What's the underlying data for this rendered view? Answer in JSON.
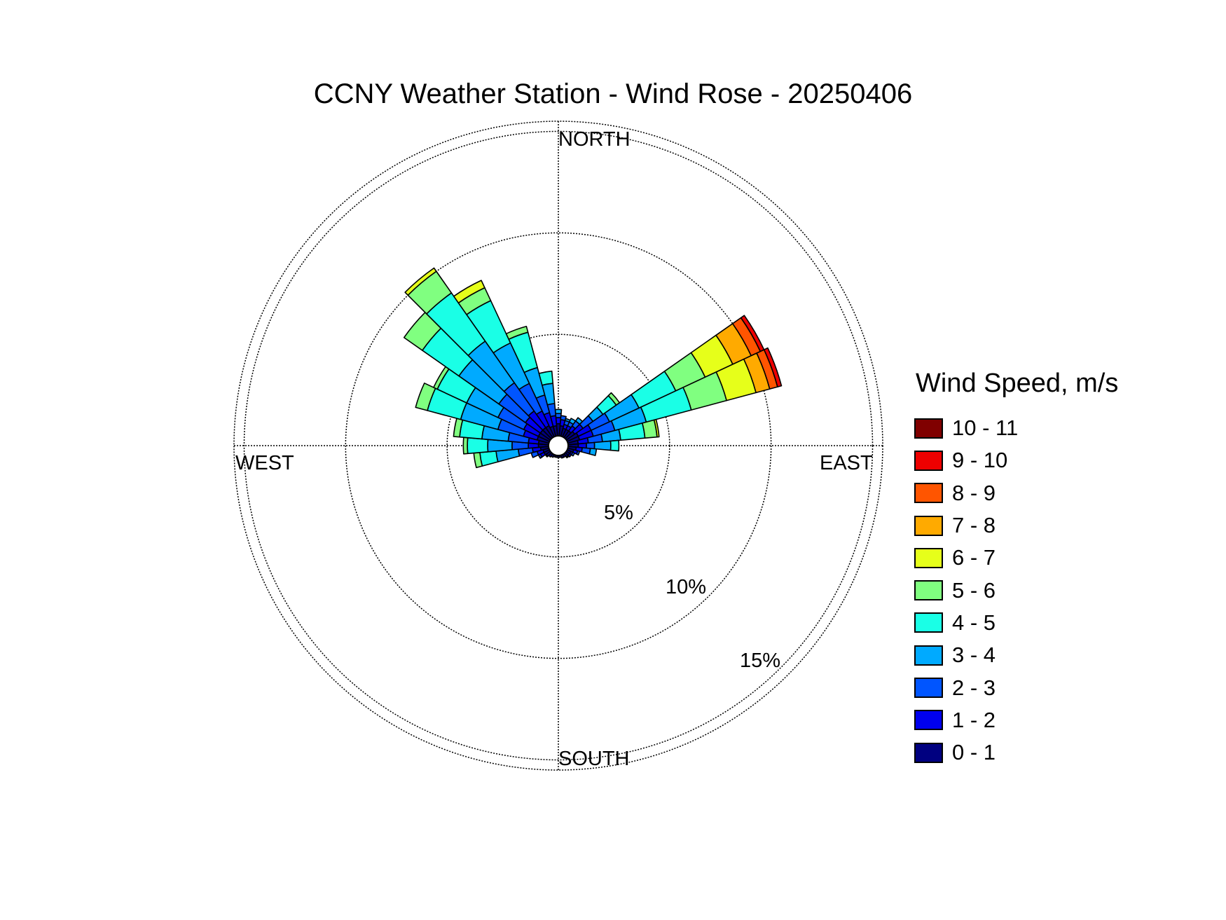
{
  "chart_data": {
    "type": "wind-rose",
    "title": "CCNY Weather Station - Wind Rose - 20250406",
    "direction_labels": {
      "north": "NORTH",
      "east": "EAST",
      "south": "SOUTH",
      "west": "WEST"
    },
    "radial_ticks": [
      5,
      10,
      15
    ],
    "radial_tick_labels": [
      "5%",
      "10%",
      "15%"
    ],
    "rmax": 15.5,
    "grid": true,
    "legend": {
      "title": "Wind Speed, m/s",
      "placement": "right",
      "bins": [
        "10 - 11",
        "9 - 10",
        "8 - 9",
        "7 - 8",
        "6 - 7",
        "5 - 6",
        "4 - 5",
        "3 - 4",
        "2 - 3",
        "1 - 2",
        "0 - 1"
      ],
      "colors": [
        "#800000",
        "#ee0000",
        "#ff5500",
        "#ffaa00",
        "#e6ff1a",
        "#80ff80",
        "#1affe6",
        "#00aaff",
        "#0055ff",
        "#0000ee",
        "#000080"
      ]
    },
    "speed_bins": [
      "0 - 1",
      "1 - 2",
      "2 - 3",
      "3 - 4",
      "4 - 5",
      "5 - 6",
      "6 - 7",
      "7 - 8",
      "8 - 9",
      "9 - 10",
      "10 - 11"
    ],
    "bin_colors": [
      "#000080",
      "#0000ee",
      "#0055ff",
      "#00aaff",
      "#1affe6",
      "#80ff80",
      "#e6ff1a",
      "#ffaa00",
      "#ff5500",
      "#ee0000",
      "#800000"
    ],
    "sector_width_deg": 10,
    "sectors": [
      {
        "direction": 0,
        "cumulative": [
          0.6,
          0.9,
          1.1,
          1.3
        ]
      },
      {
        "direction": 10,
        "cumulative": [
          0.5,
          0.8,
          1.0
        ]
      },
      {
        "direction": 20,
        "cumulative": [
          0.4,
          0.6,
          0.8,
          0.9
        ]
      },
      {
        "direction": 30,
        "cumulative": [
          0.4,
          0.6,
          0.8,
          1.0
        ]
      },
      {
        "direction": 40,
        "cumulative": [
          0.4,
          0.7,
          1.0,
          1.2
        ]
      },
      {
        "direction": 50,
        "cumulative": [
          0.5,
          1.0,
          1.6,
          2.2,
          3.0,
          3.2
        ]
      },
      {
        "direction": 60,
        "cumulative": [
          0.6,
          1.3,
          2.3,
          3.9,
          5.9,
          7.5,
          9.0,
          10.0,
          10.5,
          10.7
        ]
      },
      {
        "direction": 70,
        "cumulative": [
          0.6,
          1.3,
          2.4,
          4.0,
          6.3,
          8.1,
          9.6,
          10.3,
          10.7,
          10.9
        ]
      },
      {
        "direction": 80,
        "cumulative": [
          0.5,
          1.0,
          1.7,
          2.6,
          3.8,
          4.4,
          4.5
        ]
      },
      {
        "direction": 90,
        "cumulative": [
          0.5,
          0.9,
          1.3,
          2.1,
          2.5
        ]
      },
      {
        "direction": 100,
        "cumulative": [
          0.4,
          0.7,
          1.1,
          1.4
        ]
      },
      {
        "direction": 110,
        "cumulative": [
          0.3,
          0.5,
          0.6
        ]
      },
      {
        "direction": 120,
        "cumulative": [
          0.2,
          0.3,
          0.4
        ]
      },
      {
        "direction": 130,
        "cumulative": [
          0.2,
          0.3
        ]
      },
      {
        "direction": 140,
        "cumulative": [
          0.2,
          0.25
        ]
      },
      {
        "direction": 150,
        "cumulative": [
          0.15
        ]
      },
      {
        "direction": 160,
        "cumulative": [
          0.15
        ]
      },
      {
        "direction": 170,
        "cumulative": [
          0.1
        ]
      },
      {
        "direction": 180,
        "cumulative": [
          0.1
        ]
      },
      {
        "direction": 190,
        "cumulative": [
          0.1
        ]
      },
      {
        "direction": 200,
        "cumulative": [
          0.1
        ]
      },
      {
        "direction": 210,
        "cumulative": [
          0.15
        ]
      },
      {
        "direction": 220,
        "cumulative": [
          0.2
        ]
      },
      {
        "direction": 230,
        "cumulative": [
          0.25,
          0.3
        ]
      },
      {
        "direction": 240,
        "cumulative": [
          0.3,
          0.5,
          0.6
        ]
      },
      {
        "direction": 250,
        "cumulative": [
          0.3,
          0.6,
          0.9
        ]
      },
      {
        "direction": 260,
        "cumulative": [
          0.4,
          0.8,
          1.5,
          2.6,
          3.4,
          3.7
        ]
      },
      {
        "direction": 270,
        "cumulative": [
          0.5,
          1.0,
          1.8,
          3.0,
          4.0,
          4.2
        ]
      },
      {
        "direction": 280,
        "cumulative": [
          0.5,
          1.0,
          2.0,
          3.3,
          4.4,
          4.7
        ]
      },
      {
        "direction": 290,
        "cumulative": [
          0.6,
          1.3,
          2.6,
          4.5,
          6.2,
          6.8
        ]
      },
      {
        "direction": 300,
        "cumulative": [
          0.6,
          1.4,
          2.8,
          4.5,
          6.1,
          6.3
        ]
      },
      {
        "direction": 310,
        "cumulative": [
          0.6,
          1.5,
          3.1,
          5.5,
          7.7,
          8.8
        ]
      },
      {
        "direction": 320,
        "cumulative": [
          0.6,
          1.6,
          3.3,
          5.8,
          8.7,
          10.0,
          10.2
        ]
      },
      {
        "direction": 330,
        "cumulative": [
          0.6,
          1.4,
          2.9,
          5.1,
          7.4,
          8.1,
          8.5
        ]
      },
      {
        "direction": 340,
        "cumulative": [
          0.5,
          1.2,
          2.1,
          3.5,
          5.3,
          5.6
        ]
      },
      {
        "direction": 350,
        "cumulative": [
          0.5,
          1.0,
          1.6,
          2.6,
          3.2
        ]
      }
    ]
  }
}
